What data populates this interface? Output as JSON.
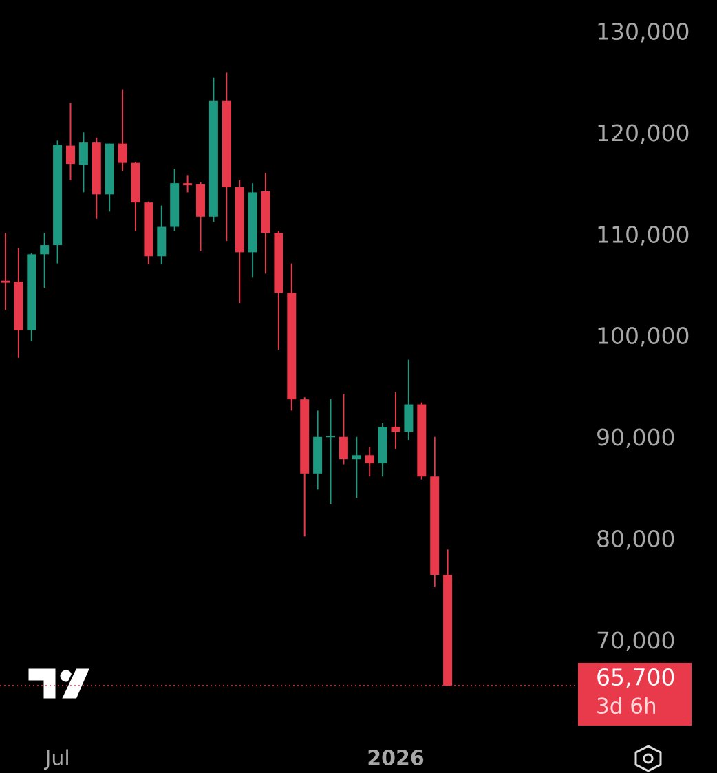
{
  "chart_data": {
    "type": "candlestick",
    "categories": [
      null,
      null,
      null,
      null,
      "Jul",
      null,
      null,
      null,
      null,
      null,
      null,
      null,
      null,
      null,
      null,
      null,
      null,
      null,
      null,
      null,
      null,
      null,
      null,
      null,
      null,
      null,
      null,
      null,
      null,
      null,
      "2026",
      null,
      null,
      null,
      null
    ],
    "open": [
      105600,
      105500,
      100700,
      108200,
      109100,
      118900,
      117000,
      119200,
      114100,
      119100,
      117200,
      113300,
      108000,
      110900,
      115200,
      115100,
      111900,
      123300,
      114800,
      108400,
      114400,
      110300,
      104400,
      93900,
      86600,
      90200,
      90200,
      88000,
      88400,
      87600,
      91200,
      90700,
      93400,
      86300,
      76600
    ],
    "high": [
      110300,
      108800,
      108300,
      110300,
      119400,
      123100,
      120200,
      119700,
      119100,
      124400,
      117300,
      113400,
      113000,
      116600,
      116000,
      115300,
      125600,
      126100,
      115500,
      115200,
      116200,
      110500,
      107300,
      94100,
      92800,
      93900,
      94400,
      90200,
      89200,
      91600,
      94600,
      97800,
      93600,
      90200,
      79100
    ],
    "low": [
      102700,
      98000,
      99600,
      104900,
      107300,
      115500,
      114300,
      111700,
      112400,
      116400,
      110500,
      107200,
      107200,
      110500,
      114300,
      108500,
      111400,
      109500,
      103400,
      105900,
      106300,
      98800,
      92800,
      80400,
      85000,
      83600,
      87500,
      84200,
      86300,
      86300,
      89000,
      89900,
      86000,
      75400,
      65700
    ],
    "close": [
      105400,
      100700,
      108200,
      109100,
      119000,
      117100,
      119200,
      114100,
      119100,
      117200,
      113300,
      108000,
      110900,
      115200,
      115000,
      111900,
      123300,
      114800,
      108400,
      114300,
      110300,
      104400,
      93900,
      86600,
      90200,
      90300,
      88000,
      88400,
      87600,
      91200,
      90700,
      93400,
      86300,
      76600,
      65700
    ],
    "up_color": "#1f9a82",
    "down_color": "#e83a4b",
    "ylim": [
      60000,
      133250
    ],
    "yticks": [
      {
        "value": 70000,
        "label": "70,000"
      },
      {
        "value": 80000,
        "label": "80,000"
      },
      {
        "value": 90000,
        "label": "90,000"
      },
      {
        "value": 100000,
        "label": "100,000"
      },
      {
        "value": 110000,
        "label": "110,000"
      },
      {
        "value": 120000,
        "label": "120,000"
      },
      {
        "value": 130000,
        "label": "130,000"
      }
    ],
    "last_price": {
      "value": 65700,
      "label": "65,700"
    },
    "countdown": "3d 6h"
  }
}
